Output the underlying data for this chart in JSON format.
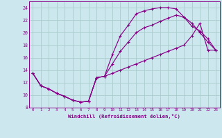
{
  "xlabel": "Windchill (Refroidissement éolien,°C)",
  "x_ticks": [
    0,
    1,
    2,
    3,
    4,
    5,
    6,
    7,
    8,
    9,
    10,
    11,
    12,
    13,
    14,
    15,
    16,
    17,
    18,
    19,
    20,
    21,
    22,
    23
  ],
  "ylim": [
    8,
    25
  ],
  "xlim": [
    -0.5,
    23.5
  ],
  "yticks": [
    8,
    10,
    12,
    14,
    16,
    18,
    20,
    22,
    24
  ],
  "background_color": "#cce8ee",
  "line_color": "#880088",
  "grid_color": "#aacccc",
  "line1_x": [
    0,
    1,
    2,
    3,
    4,
    5,
    6,
    7,
    8,
    9,
    10,
    11,
    12,
    13,
    14,
    15,
    16,
    17,
    18,
    19,
    20,
    21,
    22,
    23
  ],
  "line1_y": [
    13.5,
    11.5,
    11.0,
    10.3,
    9.8,
    9.2,
    8.9,
    9.0,
    12.8,
    13.0,
    16.5,
    19.5,
    21.2,
    23.0,
    23.5,
    23.8,
    24.0,
    24.0,
    23.8,
    22.5,
    21.0,
    20.3,
    19.0,
    17.2
  ],
  "line2_x": [
    0,
    1,
    2,
    3,
    4,
    5,
    6,
    7,
    8,
    9,
    10,
    11,
    12,
    13,
    14,
    15,
    16,
    17,
    18,
    19,
    20,
    21,
    22,
    23
  ],
  "line2_y": [
    13.5,
    11.5,
    11.0,
    10.3,
    9.8,
    9.2,
    8.9,
    9.0,
    12.8,
    13.0,
    15.0,
    17.0,
    18.5,
    20.0,
    20.8,
    21.2,
    21.8,
    22.3,
    22.8,
    22.5,
    21.5,
    20.0,
    18.5,
    17.2
  ],
  "line3_x": [
    0,
    1,
    2,
    3,
    4,
    5,
    6,
    7,
    8,
    9,
    10,
    11,
    12,
    13,
    14,
    15,
    16,
    17,
    18,
    19,
    20,
    21,
    22,
    23
  ],
  "line3_y": [
    13.5,
    11.5,
    11.0,
    10.3,
    9.8,
    9.2,
    8.9,
    9.0,
    12.8,
    13.0,
    13.5,
    14.0,
    14.5,
    15.0,
    15.5,
    16.0,
    16.5,
    17.0,
    17.5,
    18.0,
    19.5,
    21.5,
    17.2,
    17.2
  ]
}
